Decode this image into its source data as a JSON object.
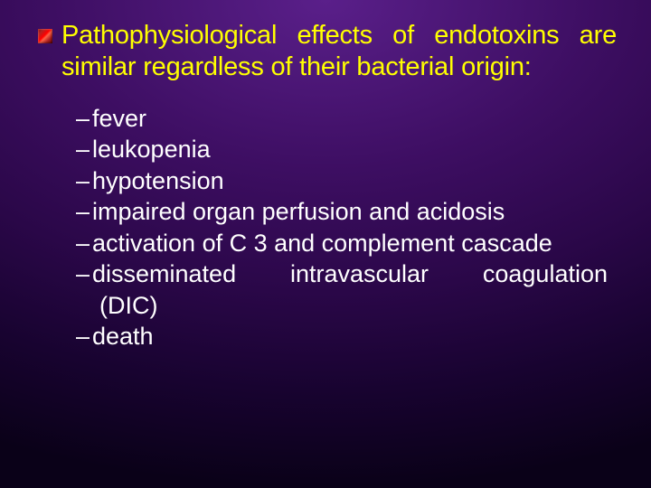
{
  "slide": {
    "background_gradient": {
      "type": "radial",
      "stops": [
        "#5a1f8a",
        "#3d0e62",
        "#2a0748",
        "#180330",
        "#0a0118"
      ]
    },
    "main_bullet": {
      "icon_colors": [
        "#8b0000",
        "#b22222",
        "#ff0000",
        "#ff6347"
      ],
      "text": "Pathophysiological effects of endotoxins are similar regardless of their bacterial origin:",
      "text_color": "#ffff00",
      "font_size_pt": 22
    },
    "sub_items": [
      "fever",
      "leukopenia",
      "hypotension",
      "impaired organ perfusion and acidosis",
      "activation of C 3 and complement cascade",
      "disseminated intravascular coagulation (DIC)",
      "death"
    ],
    "sub_item_style": {
      "text_color": "#ffffff",
      "font_size_pt": 20,
      "dash": "–"
    }
  }
}
